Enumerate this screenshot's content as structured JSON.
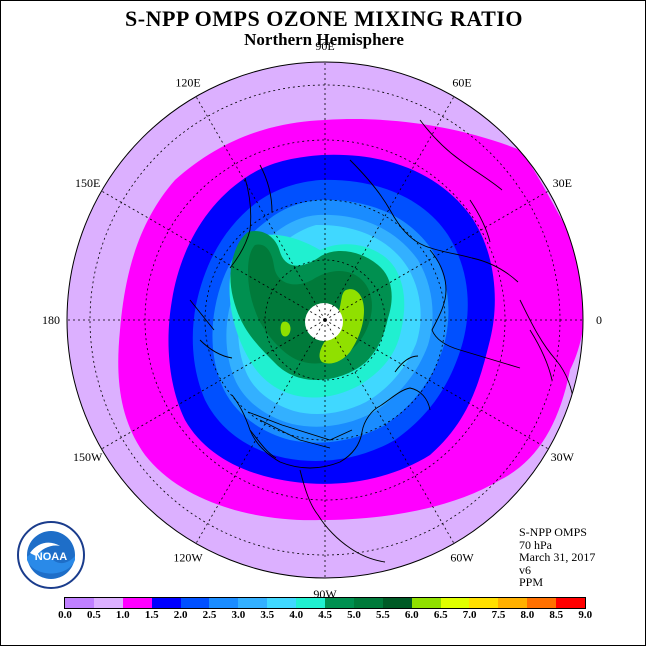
{
  "title": "S-NPP OMPS OZONE MIXING RATIO",
  "subtitle": "Northern Hemisphere",
  "longitude_labels": [
    {
      "text": "90E",
      "deg": 90
    },
    {
      "text": "60E",
      "deg": 60
    },
    {
      "text": "30E",
      "deg": 30
    },
    {
      "text": "0",
      "deg": 0
    },
    {
      "text": "30W",
      "deg": -30
    },
    {
      "text": "60W",
      "deg": -60
    },
    {
      "text": "90W",
      "deg": -90
    },
    {
      "text": "120W",
      "deg": -120
    },
    {
      "text": "150W",
      "deg": -150
    },
    {
      "text": "180",
      "deg": 180
    },
    {
      "text": "150E",
      "deg": 150
    },
    {
      "text": "120E",
      "deg": 120
    }
  ],
  "info": {
    "instrument": "S-NPP OMPS",
    "level": "70 hPa",
    "date": "March 31, 2017",
    "version": "v6",
    "units": "PPM"
  },
  "colorbar": {
    "labels": [
      "0.0",
      "0.5",
      "1.0",
      "1.5",
      "2.0",
      "2.5",
      "3.0",
      "3.5",
      "4.0",
      "4.5",
      "5.0",
      "5.5",
      "6.0",
      "6.5",
      "7.0",
      "7.5",
      "8.0",
      "8.5",
      "9.0"
    ],
    "colors": [
      "#c080ff",
      "#dcb0ff",
      "#ff00ff",
      "#0000ff",
      "#0050ff",
      "#1a8cff",
      "#33b0ff",
      "#40d8ff",
      "#20f0d0",
      "#009050",
      "#007a3a",
      "#005a25",
      "#90e000",
      "#e0ff00",
      "#ffe000",
      "#ffb000",
      "#ff7000",
      "#ff0000",
      "#8b5a3c"
    ]
  },
  "logo_text": "NOAA",
  "map_colors": {
    "outer": "#dcb0ff",
    "magenta": "#ff00ff",
    "blue": "#0000ff",
    "mid_blue": "#0050ff",
    "light_blue": "#1a8cff",
    "sky": "#33b0ff",
    "cyan": "#40d8ff",
    "teal": "#20f0d0",
    "green": "#009050",
    "dark_green": "#007a3a",
    "lime": "#90e000"
  }
}
